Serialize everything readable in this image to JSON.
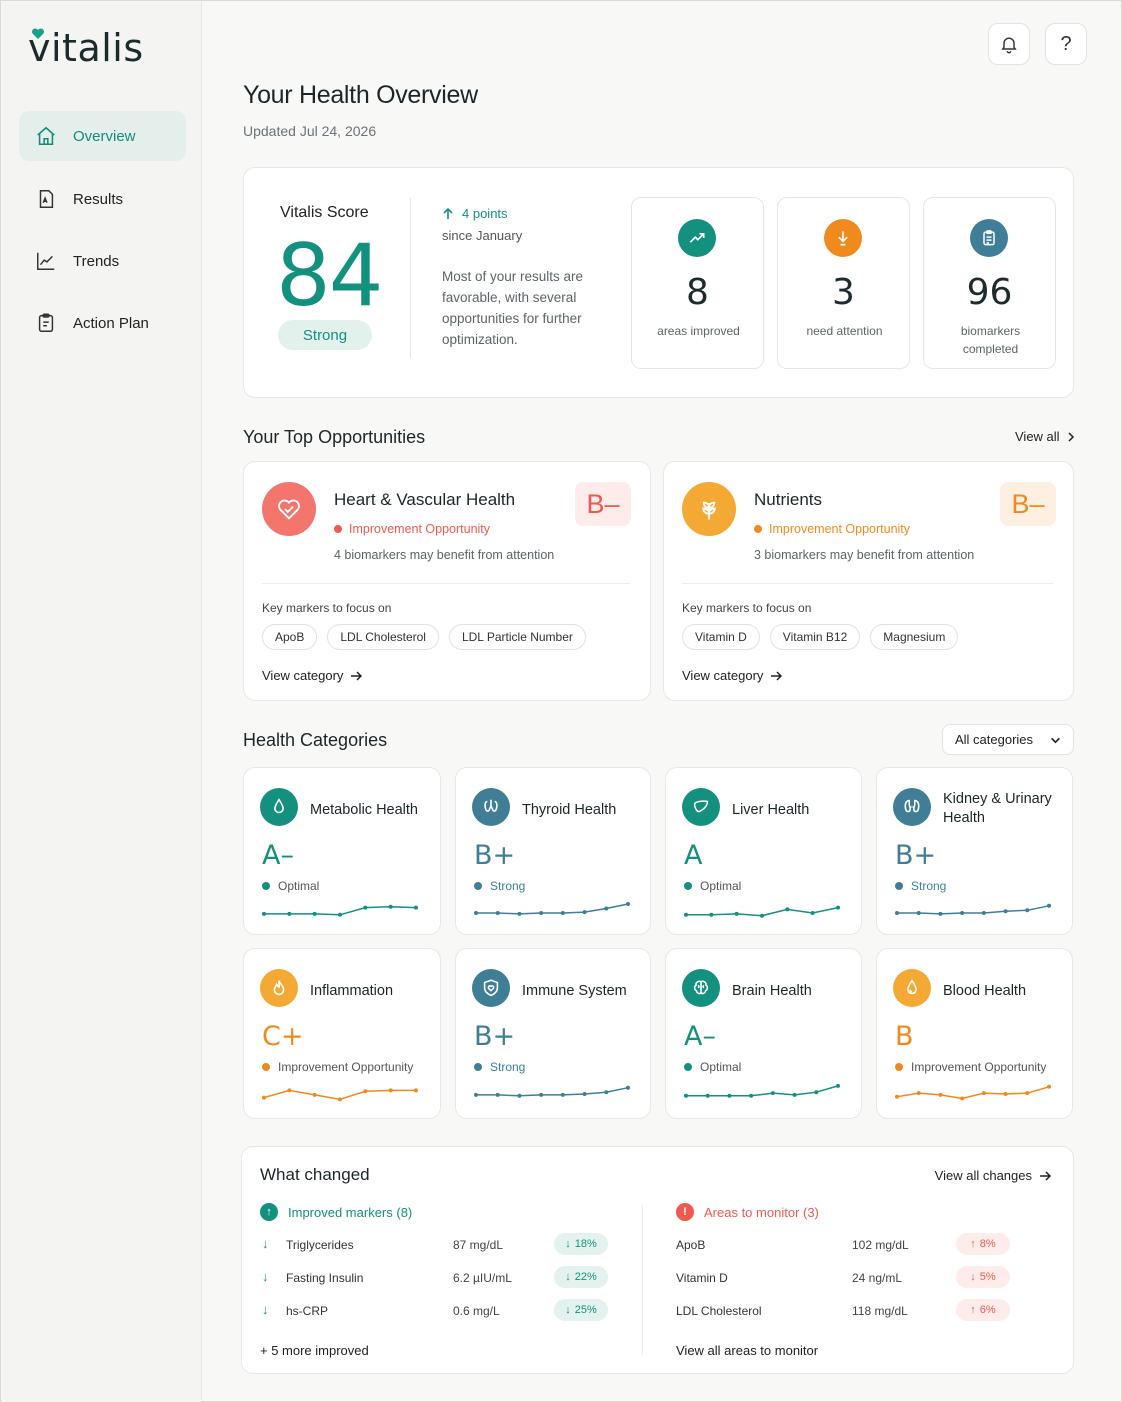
{
  "app": {
    "logo_text": "vitalis"
  },
  "sidebar": {
    "items": [
      {
        "label": "Overview",
        "icon": "home-icon",
        "active": true
      },
      {
        "label": "Results",
        "icon": "document-icon"
      },
      {
        "label": "Trends",
        "icon": "chart-line-icon"
      },
      {
        "label": "Action Plan",
        "icon": "clipboard-icon"
      }
    ]
  },
  "topbar": {
    "bell_icon": "bell-icon",
    "help_label": "?"
  },
  "header": {
    "title": "Your Health Overview",
    "updated": "Updated Jul 24, 2026"
  },
  "score": {
    "label": "Vitalis Score",
    "value": "84",
    "rating": "Strong",
    "change": "4 points",
    "since": "since January",
    "summary": "Most of your results are favorable, with several opportunities for further optimization."
  },
  "stats": [
    {
      "value": "8",
      "label": "areas improved",
      "color": "#14907f",
      "icon": "trending-up-icon"
    },
    {
      "value": "3",
      "label": "need attention",
      "color": "#f08a1c",
      "icon": "arrow-down-icon"
    },
    {
      "value": "96",
      "label": "biomarkers completed",
      "color": "#3f7e96",
      "icon": "clipboard-icon"
    }
  ],
  "opportunities": {
    "title": "Your Top Opportunities",
    "view_all": "View all",
    "items": [
      {
        "title": "Heart & Vascular Health",
        "status": "Improvement Opportunity",
        "subtitle": "4 biomarkers may benefit from attention",
        "grade": "B–",
        "key_label": "Key markers to focus on",
        "markers": [
          "ApoB",
          "LDL Cholesterol",
          "LDL Particle Number"
        ],
        "view": "View category",
        "accent": "#ee5a4f",
        "icon": "heart-icon"
      },
      {
        "title": "Nutrients",
        "status": "Improvement Opportunity",
        "subtitle": "3 biomarkers may benefit from attention",
        "grade": "B–",
        "key_label": "Key markers to focus on",
        "markers": [
          "Vitamin D",
          "Vitamin B12",
          "Magnesium"
        ],
        "view": "View category",
        "accent": "#f08a1c",
        "icon": "leaf-icon"
      }
    ]
  },
  "categories": {
    "title": "Health Categories",
    "filter": "All categories",
    "items": [
      {
        "title": "Metabolic Health",
        "grade": "A–",
        "status": "Optimal",
        "color": "#14907f",
        "icon": "drop-icon",
        "trend": [
          0.45,
          0.45,
          0.45,
          0.4,
          0.8,
          0.85,
          0.8
        ]
      },
      {
        "title": "Thyroid Health",
        "grade": "B+",
        "status": "Strong",
        "color": "#3f7e96",
        "icon": "thyroid-icon",
        "trend": [
          0.5,
          0.5,
          0.45,
          0.5,
          0.5,
          0.55,
          0.75,
          1.0
        ]
      },
      {
        "title": "Liver Health",
        "grade": "A",
        "status": "Optimal",
        "color": "#14907f",
        "icon": "liver-icon",
        "trend": [
          0.4,
          0.4,
          0.45,
          0.35,
          0.7,
          0.5,
          0.8
        ]
      },
      {
        "title": "Kidney & Urinary Health",
        "grade": "B+",
        "status": "Strong",
        "color": "#3f7e96",
        "icon": "kidney-icon",
        "trend": [
          0.5,
          0.5,
          0.45,
          0.5,
          0.5,
          0.6,
          0.65,
          0.9
        ]
      },
      {
        "title": "Inflammation",
        "grade": "C+",
        "status": "Improvement Opportunity",
        "color": "#f08a1c",
        "icon": "flame-icon",
        "trend": [
          0.3,
          0.7,
          0.45,
          0.2,
          0.65,
          0.7,
          0.7
        ]
      },
      {
        "title": "Immune System",
        "grade": "B+",
        "status": "Strong",
        "color": "#3f7e96",
        "icon": "shield-icon",
        "trend": [
          0.45,
          0.45,
          0.4,
          0.45,
          0.45,
          0.5,
          0.6,
          0.85
        ]
      },
      {
        "title": "Brain Health",
        "grade": "A–",
        "status": "Optimal",
        "color": "#14907f",
        "icon": "brain-icon",
        "trend": [
          0.4,
          0.4,
          0.4,
          0.4,
          0.55,
          0.45,
          0.6,
          0.95
        ]
      },
      {
        "title": "Blood Health",
        "grade": "B",
        "status": "Improvement Opportunity",
        "color": "#f08a1c",
        "icon": "blood-drop-icon",
        "trend": [
          0.35,
          0.55,
          0.45,
          0.25,
          0.55,
          0.5,
          0.55,
          0.9
        ]
      }
    ]
  },
  "changes": {
    "title": "What changed",
    "view_all": "View all changes",
    "improved": {
      "heading": "Improved markers (8)",
      "rows": [
        {
          "name": "Triglycerides",
          "value": "87 mg/dL",
          "delta": "18%"
        },
        {
          "name": "Fasting Insulin",
          "value": "6.2 µIU/mL",
          "delta": "22%"
        },
        {
          "name": "hs-CRP",
          "value": "0.6 mg/L",
          "delta": "25%"
        }
      ],
      "footer": "+ 5 more improved"
    },
    "monitor": {
      "heading": "Areas to monitor (3)",
      "rows": [
        {
          "name": "ApoB",
          "value": "102 mg/dL",
          "delta": "8%",
          "dir": "up"
        },
        {
          "name": "Vitamin D",
          "value": "24 ng/mL",
          "delta": "5%",
          "dir": "down"
        },
        {
          "name": "LDL Cholesterol",
          "value": "118 mg/dL",
          "delta": "6%",
          "dir": "up"
        }
      ],
      "footer": "View all areas to monitor"
    }
  }
}
